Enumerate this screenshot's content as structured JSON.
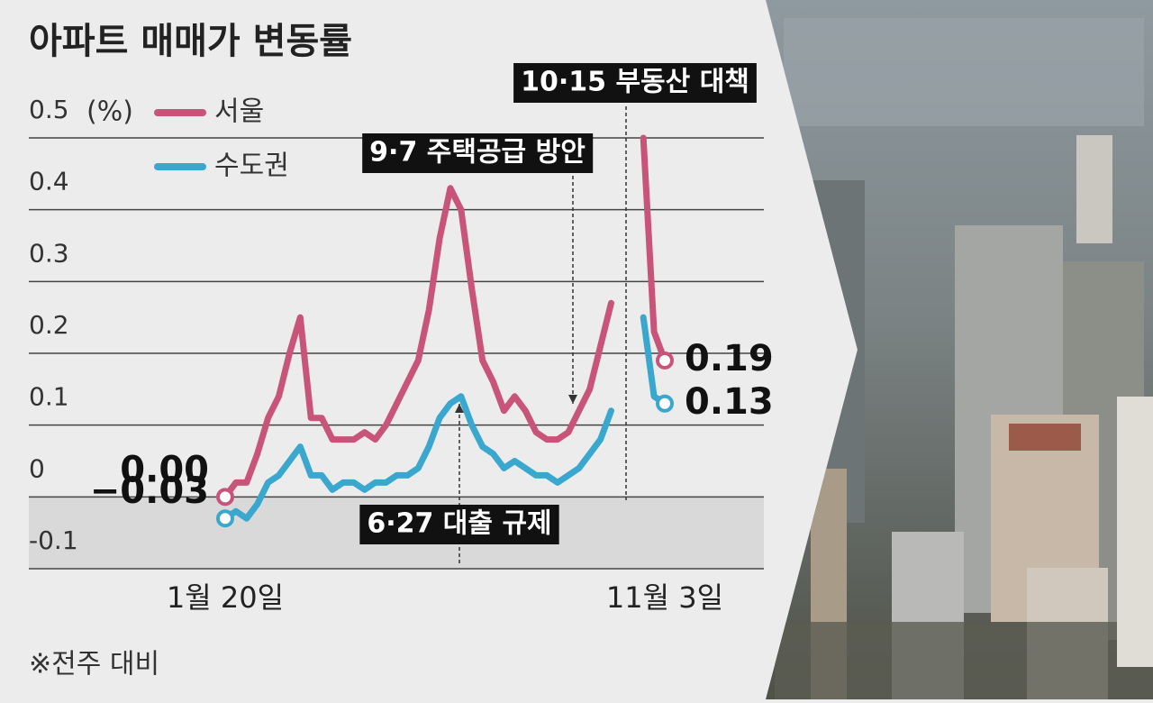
{
  "chart_data": {
    "type": "line",
    "title": "아파트 매매가 변동률",
    "y_unit": "(%)",
    "footnote": "※전주 대비",
    "categories": [
      "1월 20일",
      null,
      null,
      null,
      null,
      null,
      null,
      null,
      null,
      null,
      null,
      null,
      null,
      null,
      null,
      null,
      null,
      null,
      null,
      null,
      null,
      null,
      null,
      null,
      null,
      null,
      null,
      null,
      null,
      null,
      null,
      null,
      null,
      null,
      null,
      null,
      null,
      null,
      null,
      null,
      null,
      "11월 3일"
    ],
    "series": [
      {
        "name": "서울",
        "color": "#c9547a",
        "values": [
          0.0,
          0.02,
          0.02,
          0.06,
          0.11,
          0.14,
          0.2,
          0.25,
          0.11,
          0.11,
          0.08,
          0.08,
          0.08,
          0.09,
          0.08,
          0.1,
          0.13,
          0.16,
          0.19,
          0.26,
          0.36,
          0.43,
          0.4,
          0.29,
          0.19,
          0.16,
          0.12,
          0.14,
          0.12,
          0.09,
          0.08,
          0.08,
          0.09,
          0.12,
          0.15,
          0.21,
          0.27,
          null,
          null,
          0.5,
          0.23,
          0.19
        ],
        "value_labels": [
          "0.00",
          null,
          null,
          null,
          null,
          null,
          null,
          null,
          null,
          null,
          null,
          null,
          null,
          null,
          null,
          null,
          null,
          null,
          null,
          null,
          null,
          null,
          null,
          null,
          null,
          null,
          null,
          null,
          null,
          null,
          null,
          null,
          null,
          null,
          null,
          null,
          null,
          null,
          null,
          null,
          null,
          "0.19"
        ]
      },
      {
        "name": "수도권",
        "color": "#3aa7cf",
        "values": [
          -0.03,
          -0.02,
          -0.03,
          -0.01,
          0.02,
          0.03,
          0.05,
          0.07,
          0.03,
          0.03,
          0.01,
          0.02,
          0.02,
          0.01,
          0.02,
          0.02,
          0.03,
          0.03,
          0.04,
          0.07,
          0.11,
          0.13,
          0.14,
          0.1,
          0.07,
          0.06,
          0.04,
          0.05,
          0.04,
          0.03,
          0.03,
          0.02,
          0.03,
          0.04,
          0.06,
          0.08,
          0.12,
          null,
          null,
          0.25,
          0.14,
          0.13
        ],
        "value_labels": [
          "−0.03",
          null,
          null,
          null,
          null,
          null,
          null,
          null,
          null,
          null,
          null,
          null,
          null,
          null,
          null,
          null,
          null,
          null,
          null,
          null,
          null,
          null,
          null,
          null,
          null,
          null,
          null,
          null,
          null,
          null,
          null,
          null,
          null,
          null,
          null,
          null,
          null,
          null,
          null,
          null,
          null,
          "0.13"
        ]
      }
    ],
    "annotations": [
      "6·27 대출 규제",
      "9·7 주택공급 방안",
      "10·15 부동산 대책"
    ],
    "ylim": [
      -0.1,
      0.5
    ],
    "yticks": [
      -0.1,
      0,
      0.1,
      0.2,
      0.3,
      0.4,
      0.5
    ],
    "grid": true
  }
}
